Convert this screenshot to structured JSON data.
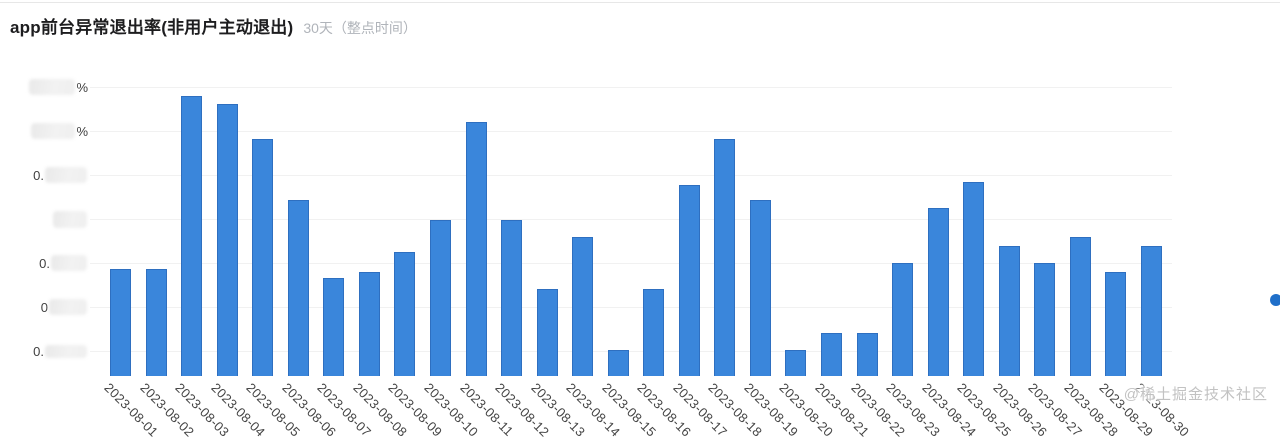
{
  "header": {
    "title": "app前台异常退出率(非用户主动退出)",
    "subtitle": "30天（整点时间）"
  },
  "watermark": {
    "text": "@稀土掘金技术社区"
  },
  "colors": {
    "bar_fill": "#3a86db",
    "bar_border": "#2e6fc0",
    "grid_line": "#f1f1f1",
    "accent_dot": "#1f6fc9",
    "title_text": "#1d1d1f",
    "subtitle_text": "#b0b4ba",
    "axis_text": "#444444",
    "watermark_text": "#c2c2c2"
  },
  "y_axis": {
    "redacted": true,
    "unit_suffix": "%",
    "labels": [
      {
        "prefix": "",
        "suffix": "%",
        "smudge_w": 46,
        "smudge_h": 16
      },
      {
        "prefix": "",
        "suffix": "%",
        "smudge_w": 44,
        "smudge_h": 16
      },
      {
        "prefix": "0.",
        "suffix": "",
        "smudge_w": 42,
        "smudge_h": 16
      },
      {
        "prefix": "",
        "suffix": "",
        "smudge_w": 34,
        "smudge_h": 17
      },
      {
        "prefix": "0.",
        "suffix": "",
        "smudge_w": 36,
        "smudge_h": 16
      },
      {
        "prefix": "0",
        "suffix": "",
        "smudge_w": 38,
        "smudge_h": 16
      },
      {
        "prefix": "0.",
        "suffix": "",
        "smudge_w": 42,
        "smudge_h": 13
      }
    ]
  },
  "chart_data": {
    "type": "bar",
    "title": "app前台异常退出率(非用户主动退出)",
    "subtitle": "30天（整点时间）",
    "xlabel": "",
    "ylabel": "%",
    "grid": true,
    "legend": "none",
    "y_tick_labels_redacted": true,
    "note": "y-axis tick numbers are blurred out in source image; values below are relative bar heights (fraction of plot height, 0-1)",
    "x": [
      "2023-08-01",
      "2023-08-02",
      "2023-08-03",
      "2023-08-04",
      "2023-08-05",
      "2023-08-06",
      "2023-08-07",
      "2023-08-08",
      "2023-08-09",
      "2023-08-10",
      "2023-08-11",
      "2023-08-12",
      "2023-08-13",
      "2023-08-14",
      "2023-08-15",
      "2023-08-16",
      "2023-08-17",
      "2023-08-18",
      "2023-08-19",
      "2023-08-20",
      "2023-08-21",
      "2023-08-22",
      "2023-08-23",
      "2023-08-24",
      "2023-08-25",
      "2023-08-26",
      "2023-08-27",
      "2023-08-28",
      "2023-08-29",
      "2023-08-30"
    ],
    "series": [
      {
        "name": "app前台异常退出率",
        "values_relative": [
          0.37,
          0.37,
          0.97,
          0.94,
          0.82,
          0.61,
          0.34,
          0.36,
          0.43,
          0.54,
          0.88,
          0.54,
          0.3,
          0.48,
          0.09,
          0.3,
          0.66,
          0.82,
          0.61,
          0.09,
          0.15,
          0.15,
          0.39,
          0.58,
          0.67,
          0.45,
          0.39,
          0.48,
          0.36,
          0.45
        ]
      }
    ]
  }
}
